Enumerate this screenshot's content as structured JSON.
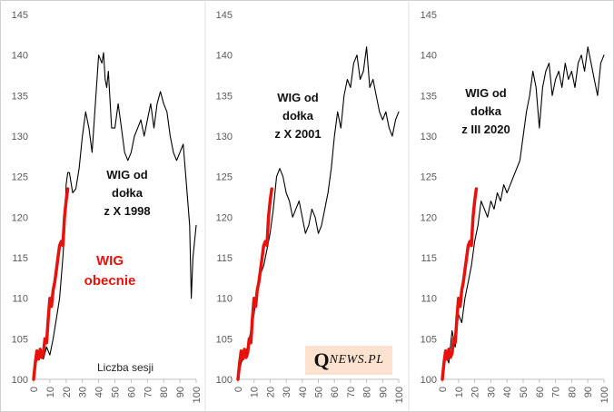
{
  "chart_data": [
    {
      "type": "line",
      "title": "",
      "xlabel": "Liczba sesji",
      "ylabel": "",
      "ylim": [
        100,
        145
      ],
      "xlim": [
        0,
        100
      ],
      "yticks": [
        "100",
        "105",
        "110",
        "115",
        "120",
        "125",
        "130",
        "135",
        "140",
        "145"
      ],
      "xticks": [
        "0",
        "10",
        "20",
        "30",
        "40",
        "50",
        "60",
        "70",
        "80",
        "90",
        "100"
      ],
      "annotation": [
        "WIG od",
        "dołka",
        "z X 1998"
      ],
      "series": [
        {
          "name": "WIG od dołka z X 1998",
          "color": "#000000",
          "x": [
            0,
            2,
            4,
            6,
            8,
            10,
            12,
            14,
            16,
            18,
            19,
            20,
            21,
            22,
            24,
            26,
            28,
            30,
            32,
            34,
            36,
            38,
            40,
            42,
            43,
            44,
            45,
            46,
            48,
            50,
            52,
            54,
            56,
            58,
            60,
            62,
            64,
            66,
            68,
            70,
            72,
            74,
            76,
            78,
            80,
            82,
            84,
            86,
            88,
            90,
            92,
            94,
            96,
            97,
            98,
            100
          ],
          "y": [
            100,
            102.5,
            103.5,
            102.5,
            104,
            103,
            105,
            107.5,
            110,
            115,
            118,
            124,
            125.5,
            125.5,
            123,
            123.5,
            126,
            130,
            133,
            131,
            128,
            134,
            140,
            139,
            140.3,
            137,
            136,
            138,
            131,
            131,
            134,
            131,
            128,
            127,
            128,
            130,
            131,
            132,
            130,
            132,
            134,
            131,
            134,
            135.5,
            134,
            133,
            130,
            128,
            127,
            128,
            129,
            124,
            119,
            110,
            115,
            119
          ]
        },
        {
          "name": "WIG obecnie",
          "color": "#e8120c",
          "x": [
            0,
            1,
            2,
            3,
            4,
            5,
            6,
            7,
            8,
            9,
            10,
            11,
            12,
            13,
            14,
            15,
            16,
            17,
            18,
            19,
            20,
            21
          ],
          "y": [
            100,
            102,
            103.5,
            102.5,
            103.7,
            102.7,
            103.2,
            105,
            104.5,
            107.5,
            110,
            109,
            111,
            112,
            113.5,
            115,
            116.5,
            117,
            116.5,
            120,
            122,
            123.5
          ]
        }
      ],
      "labels": {
        "current": [
          "WIG",
          "obecnie"
        ]
      }
    },
    {
      "type": "line",
      "title": "",
      "xlabel": "",
      "ylabel": "",
      "ylim": [
        100,
        145
      ],
      "xlim": [
        0,
        100
      ],
      "yticks": [
        "100",
        "105",
        "110",
        "115",
        "120",
        "125",
        "130",
        "135",
        "140",
        "145"
      ],
      "xticks": [
        "0",
        "10",
        "20",
        "30",
        "40",
        "50",
        "60",
        "70",
        "80",
        "90",
        "100"
      ],
      "annotation": [
        "WIG od",
        "dołka",
        "z X 2001"
      ],
      "series": [
        {
          "name": "WIG od dołka z X 2001",
          "color": "#000000",
          "x": [
            0,
            2,
            4,
            6,
            8,
            10,
            12,
            14,
            16,
            18,
            20,
            22,
            24,
            26,
            28,
            30,
            32,
            34,
            36,
            38,
            40,
            42,
            44,
            46,
            48,
            50,
            52,
            54,
            56,
            58,
            60,
            62,
            64,
            66,
            68,
            70,
            72,
            74,
            76,
            78,
            80,
            82,
            84,
            86,
            88,
            90,
            92,
            94,
            96,
            98,
            100
          ],
          "y": [
            100,
            102,
            103,
            104,
            106,
            108,
            111,
            113,
            114,
            116,
            118,
            121,
            125,
            126,
            125,
            123,
            122,
            120,
            121,
            122,
            120,
            118,
            119,
            121,
            120,
            118,
            119,
            121,
            123,
            126,
            130,
            133,
            131,
            135,
            137,
            136,
            139,
            140,
            137,
            138,
            141,
            136,
            137,
            135,
            133,
            132,
            133,
            131,
            130,
            132,
            133
          ]
        },
        {
          "name": "WIG obecnie",
          "color": "#e8120c",
          "x": [
            0,
            1,
            2,
            3,
            4,
            5,
            6,
            7,
            8,
            9,
            10,
            11,
            12,
            13,
            14,
            15,
            16,
            17,
            18,
            19,
            20,
            21
          ],
          "y": [
            100,
            102,
            103.5,
            102.5,
            103.7,
            102.7,
            103.2,
            105,
            104.5,
            107.5,
            110,
            109,
            111,
            112,
            113.5,
            115,
            116.5,
            117,
            116.5,
            120,
            122,
            123.5
          ]
        }
      ]
    },
    {
      "type": "line",
      "title": "",
      "xlabel": "",
      "ylabel": "",
      "ylim": [
        100,
        145
      ],
      "xlim": [
        0,
        100
      ],
      "yticks": [
        "100",
        "105",
        "110",
        "115",
        "120",
        "125",
        "130",
        "135",
        "140",
        "145"
      ],
      "xticks": [
        "0",
        "10",
        "20",
        "30",
        "40",
        "50",
        "60",
        "70",
        "80",
        "90",
        "100"
      ],
      "annotation": [
        "WIG od",
        "dołka",
        "z III 2020"
      ],
      "series": [
        {
          "name": "WIG od dołka z III 2020",
          "color": "#000000",
          "x": [
            0,
            2,
            4,
            6,
            8,
            10,
            12,
            14,
            16,
            18,
            20,
            22,
            24,
            26,
            28,
            30,
            32,
            34,
            36,
            38,
            40,
            42,
            44,
            46,
            48,
            50,
            52,
            54,
            56,
            58,
            60,
            62,
            64,
            66,
            68,
            70,
            72,
            74,
            76,
            78,
            80,
            82,
            84,
            86,
            88,
            90,
            92,
            94,
            96,
            98,
            100
          ],
          "y": [
            100,
            103,
            102,
            106,
            104,
            108,
            107,
            110,
            112,
            114,
            117,
            119,
            122,
            121,
            120,
            122,
            121,
            123,
            122,
            124,
            123,
            124,
            125,
            126,
            127,
            130,
            133,
            135,
            138,
            136,
            131,
            136,
            138,
            139,
            135,
            137,
            138,
            136,
            139,
            137,
            138,
            136,
            139,
            140,
            138,
            141,
            139,
            137,
            135,
            139,
            140
          ]
        },
        {
          "name": "WIG obecnie",
          "color": "#e8120c",
          "x": [
            0,
            1,
            2,
            3,
            4,
            5,
            6,
            7,
            8,
            9,
            10,
            11,
            12,
            13,
            14,
            15,
            16,
            17,
            18,
            19,
            20,
            21
          ],
          "y": [
            100,
            102,
            103.5,
            102.5,
            103.7,
            102.7,
            103.2,
            105,
            104.5,
            107.5,
            110,
            109,
            111,
            112,
            113.5,
            115,
            116.5,
            117,
            116.5,
            120,
            122,
            123.5
          ]
        }
      ]
    }
  ],
  "logo": {
    "q": "Q",
    "text": "NEWS.PL"
  }
}
